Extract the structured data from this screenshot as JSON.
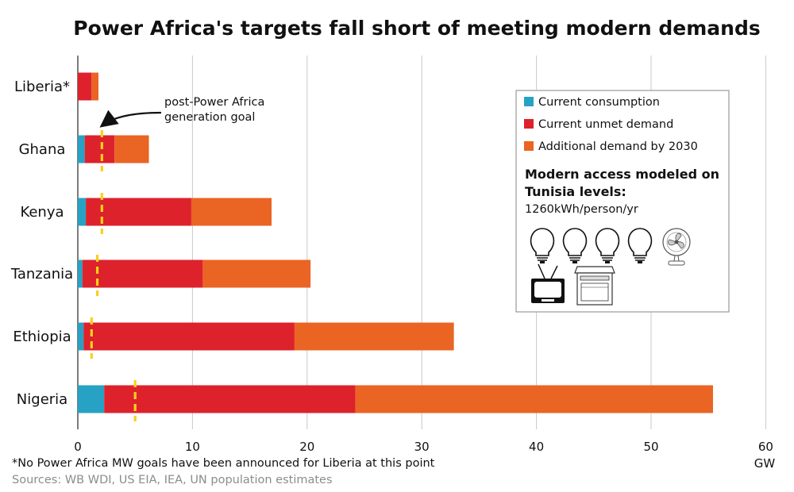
{
  "chart_data": {
    "type": "bar",
    "orientation": "horizontal",
    "stacked": true,
    "title": "Power Africa's targets fall short of meeting modern demands",
    "xlabel": "GW",
    "xlim": [
      0,
      60
    ],
    "xticks": [
      0,
      10,
      20,
      30,
      40,
      50,
      60
    ],
    "grid": "vertical",
    "categories": [
      "Liberia*",
      "Ghana",
      "Kenya",
      "Tanzania",
      "Ethiopia",
      "Nigeria"
    ],
    "series": [
      {
        "name": "Current consumption",
        "color": "#27a2c4",
        "values": [
          0,
          0.6,
          0.7,
          0.4,
          0.5,
          2.3
        ]
      },
      {
        "name": "Current unmet demand",
        "color": "#dd222c",
        "values": [
          1.2,
          2.6,
          9.2,
          10.5,
          18.4,
          21.9
        ]
      },
      {
        "name": "Additional demand by 2030",
        "color": "#ea6424",
        "values": [
          0.6,
          3.0,
          7.0,
          9.4,
          13.9,
          31.2
        ]
      }
    ],
    "goal_markers": {
      "name": "post-Power Africa generation goal",
      "color": "#f7d11a",
      "values": [
        null,
        2.1,
        2.1,
        1.7,
        1.2,
        5.0
      ]
    },
    "annotation": "post-Power Africa generation  goal",
    "legend_position": "top-right"
  },
  "model_box": {
    "title": "Modern access modeled on Tunisia levels:",
    "subtitle": "1260kWh/person/yr",
    "icons": [
      "light-bulb",
      "light-bulb",
      "light-bulb",
      "light-bulb",
      "fan",
      "television",
      "stove"
    ]
  },
  "footnote": "*No Power Africa MW goals have been announced for Liberia at this point",
  "sources": "Sources: WB WDI, US EIA, IEA, UN population estimates"
}
